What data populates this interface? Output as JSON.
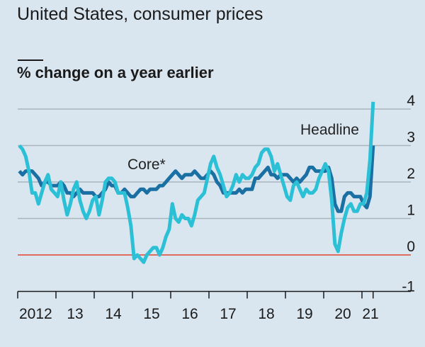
{
  "chart_data": {
    "type": "line",
    "title": "United States, consumer prices",
    "subtitle": "% change on a year earlier",
    "x_start": "2012-01",
    "x_frequency": "monthly",
    "xlabel": "",
    "ylabel": "",
    "ylim": [
      -1,
      4
    ],
    "yticks": [
      "4",
      "3",
      "2",
      "1",
      "0",
      "-1"
    ],
    "xticks": [
      "2012",
      "13",
      "14",
      "15",
      "16",
      "17",
      "18",
      "19",
      "20",
      "21"
    ],
    "grid": true,
    "zero_line_color": "#e06b5f",
    "series": [
      {
        "name": "Core*",
        "color": "#1a6fa3",
        "values": [
          2.3,
          2.2,
          2.3,
          2.3,
          2.3,
          2.2,
          2.1,
          1.9,
          2.0,
          2.0,
          1.9,
          1.9,
          1.9,
          2.0,
          1.9,
          1.7,
          1.7,
          1.6,
          1.7,
          1.8,
          1.7,
          1.7,
          1.7,
          1.7,
          1.6,
          1.6,
          1.7,
          1.8,
          2.0,
          1.9,
          1.9,
          1.7,
          1.7,
          1.8,
          1.7,
          1.6,
          1.6,
          1.7,
          1.8,
          1.8,
          1.7,
          1.8,
          1.8,
          1.8,
          1.9,
          1.9,
          2.0,
          2.1,
          2.2,
          2.3,
          2.2,
          2.1,
          2.2,
          2.2,
          2.2,
          2.3,
          2.2,
          2.1,
          2.1,
          2.2,
          2.3,
          2.2,
          2.0,
          1.9,
          1.7,
          1.7,
          1.7,
          1.7,
          1.7,
          1.8,
          1.7,
          1.8,
          1.8,
          1.8,
          2.1,
          2.1,
          2.2,
          2.3,
          2.4,
          2.2,
          2.2,
          2.1,
          2.2,
          2.2,
          2.2,
          2.1,
          2.0,
          2.1,
          2.0,
          2.1,
          2.2,
          2.4,
          2.4,
          2.3,
          2.3,
          2.3,
          2.3,
          2.4,
          2.1,
          1.4,
          1.2,
          1.2,
          1.6,
          1.7,
          1.7,
          1.6,
          1.6,
          1.6,
          1.4,
          1.3,
          1.6,
          3.0
        ]
      },
      {
        "name": "Headline",
        "color": "#2bc0d6",
        "values": [
          3.0,
          2.9,
          2.7,
          2.3,
          1.7,
          1.7,
          1.4,
          1.7,
          2.0,
          2.2,
          1.8,
          1.7,
          1.6,
          2.0,
          1.5,
          1.1,
          1.4,
          1.8,
          2.0,
          1.5,
          1.2,
          1.0,
          1.2,
          1.5,
          1.6,
          1.1,
          1.5,
          2.0,
          2.1,
          2.1,
          2.0,
          1.7,
          1.7,
          1.7,
          1.3,
          0.8,
          -0.1,
          0.0,
          -0.1,
          -0.2,
          0.0,
          0.1,
          0.2,
          0.2,
          0.0,
          0.2,
          0.5,
          0.7,
          1.4,
          1.0,
          0.9,
          1.1,
          1.0,
          1.0,
          0.8,
          1.1,
          1.5,
          1.6,
          1.7,
          2.1,
          2.5,
          2.7,
          2.4,
          2.2,
          1.9,
          1.6,
          1.7,
          1.9,
          2.2,
          2.0,
          2.2,
          2.1,
          2.1,
          2.2,
          2.4,
          2.5,
          2.8,
          2.9,
          2.9,
          2.7,
          2.3,
          2.5,
          2.2,
          1.9,
          1.6,
          1.5,
          1.9,
          2.0,
          1.8,
          1.6,
          1.8,
          1.7,
          1.7,
          1.8,
          2.1,
          2.3,
          2.5,
          2.3,
          1.5,
          0.3,
          0.1,
          0.6,
          1.0,
          1.3,
          1.4,
          1.2,
          1.2,
          1.4,
          1.4,
          1.7,
          2.6,
          4.2
        ]
      }
    ],
    "annotations": [
      "Core*",
      "Headline"
    ]
  }
}
